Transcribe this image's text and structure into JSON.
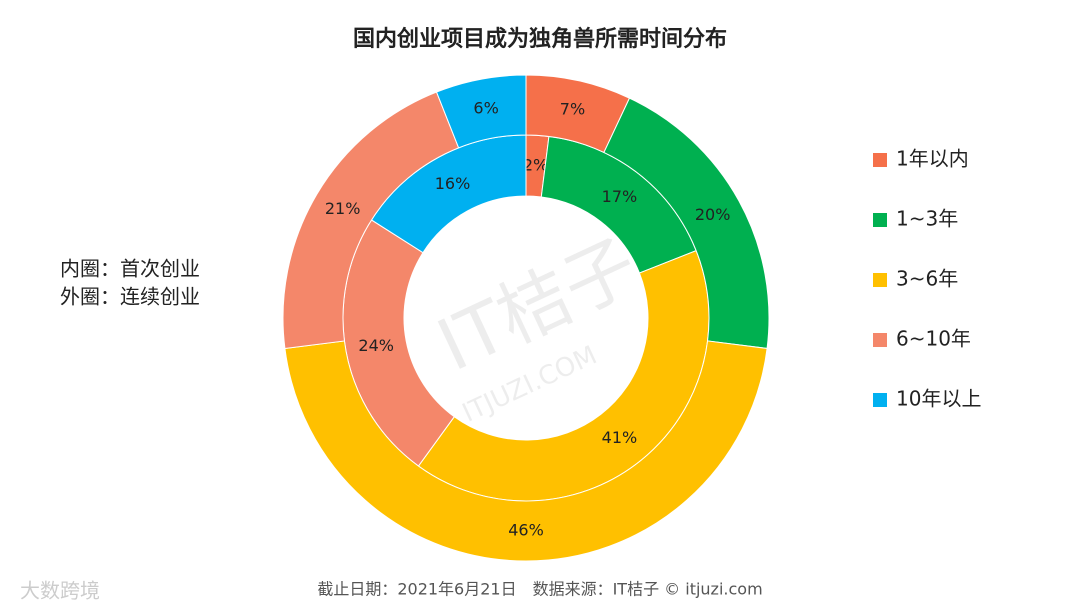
{
  "chart_data": {
    "type": "donut",
    "title": "国内创业项目成为独角兽所需时间分布",
    "categories": [
      "1年以内",
      "1~3年",
      "3~6年",
      "6~10年",
      "10年以上"
    ],
    "colors": [
      "#f5704a",
      "#00b050",
      "#ffc000",
      "#f4876a",
      "#00b0f0"
    ],
    "series": [
      {
        "name": "内圈：首次创业",
        "values": [
          2,
          17,
          41,
          24,
          16
        ],
        "value_labels": [
          "2%",
          "17%",
          "41%",
          "24%",
          "16%"
        ]
      },
      {
        "name": "外圈：连续创业",
        "values": [
          7,
          20,
          46,
          21,
          6
        ],
        "value_labels": [
          "7%",
          "20%",
          "46%",
          "21%",
          "6%"
        ]
      }
    ],
    "legend": "right",
    "source": "截止日期：2021年6月21日　数据来源：IT桔子 © itjuzi.com",
    "watermark": "IT桔子",
    "watermark_url": "ITJUZI.COM",
    "logo": "大数跨境"
  }
}
